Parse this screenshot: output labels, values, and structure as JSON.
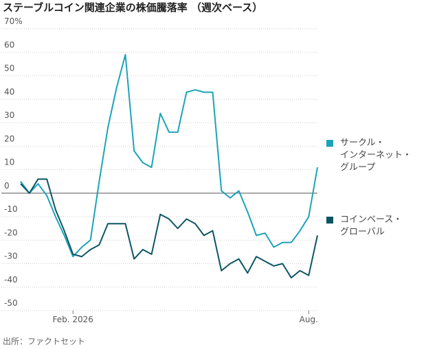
{
  "chart_data": {
    "type": "line",
    "title": "ステーブルコイン関連企業の株価騰落率 （週次ベース）",
    "source": "出所：ファクトセット",
    "categories": [
      null,
      null,
      null,
      null,
      null,
      null,
      "Feb. 2026",
      null,
      null,
      null,
      null,
      null,
      null,
      null,
      null,
      null,
      null,
      null,
      null,
      null,
      null,
      null,
      null,
      null,
      null,
      null,
      null,
      null,
      null,
      null,
      null,
      null,
      null,
      "Aug.",
      null
    ],
    "series": [
      {
        "name": "サークル・インターネット・グループ",
        "color": "#1ba3b8",
        "values": [
          5,
          0,
          4,
          -1,
          -10,
          -18,
          -27,
          -23,
          -20,
          5,
          28,
          45,
          59,
          18,
          13,
          11,
          34,
          26,
          26,
          43,
          44,
          43,
          43,
          1,
          -2,
          1,
          -8,
          -18,
          -17,
          -23,
          -21,
          -21,
          -16,
          -10,
          11
        ]
      },
      {
        "name": "コインベース・グローバル",
        "color": "#0b5563",
        "values": [
          4,
          0,
          6,
          6,
          -7,
          -16,
          -26,
          -27,
          -24,
          -22,
          -13,
          -13,
          -13,
          -28,
          -24,
          -26,
          -9,
          -11,
          -15,
          -11,
          -13,
          -18,
          -16,
          -33,
          -30,
          -28,
          -34,
          -27,
          -29,
          -31,
          -30,
          -36,
          -33,
          -35,
          -18
        ]
      }
    ],
    "ylim": [
      -50,
      70
    ],
    "yticks": [
      -50,
      -40,
      -30,
      -20,
      -10,
      0,
      10,
      20,
      30,
      40,
      50,
      60,
      {
        "value": 70,
        "label": "70%"
      }
    ],
    "grid": true
  }
}
